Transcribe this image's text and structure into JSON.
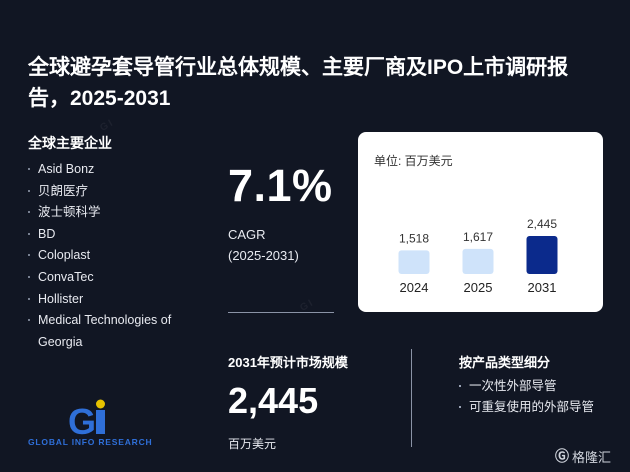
{
  "title": "全球避孕套导管行业总体规模、主要厂商及IPO上市调研报告，2025-2031",
  "companies": {
    "title": "全球主要企业",
    "items": [
      "Asid Bonz",
      "贝朗医疗",
      "波士顿科学",
      "BD",
      "Coloplast",
      "ConvaTec",
      "Hollister",
      "Medical Technologies of Georgia"
    ]
  },
  "cagr": {
    "value": "7.1%",
    "label": "CAGR",
    "period": "(2025-2031)"
  },
  "chart_data": {
    "type": "bar",
    "unit_label": "单位: 百万美元",
    "categories": [
      "2024",
      "2025",
      "2031"
    ],
    "values": [
      1518,
      1617,
      2445
    ],
    "value_labels": [
      "1,518",
      "1,617",
      "2,445"
    ],
    "colors": [
      "#cfe3fa",
      "#cfe3fa",
      "#0b2a8c"
    ]
  },
  "market": {
    "title": "2031年预计市场规模",
    "value": "2,445",
    "unit": "百万美元"
  },
  "products": {
    "title": "按产品类型细分",
    "items": [
      "一次性外部导管",
      "可重复使用的外部导管"
    ]
  },
  "logo": {
    "text": "GLOBAL INFO RESEARCH",
    "colors": {
      "primary": "#2f6fd8",
      "accent": "#e6c200"
    }
  },
  "footer": {
    "brand": "格隆汇"
  }
}
